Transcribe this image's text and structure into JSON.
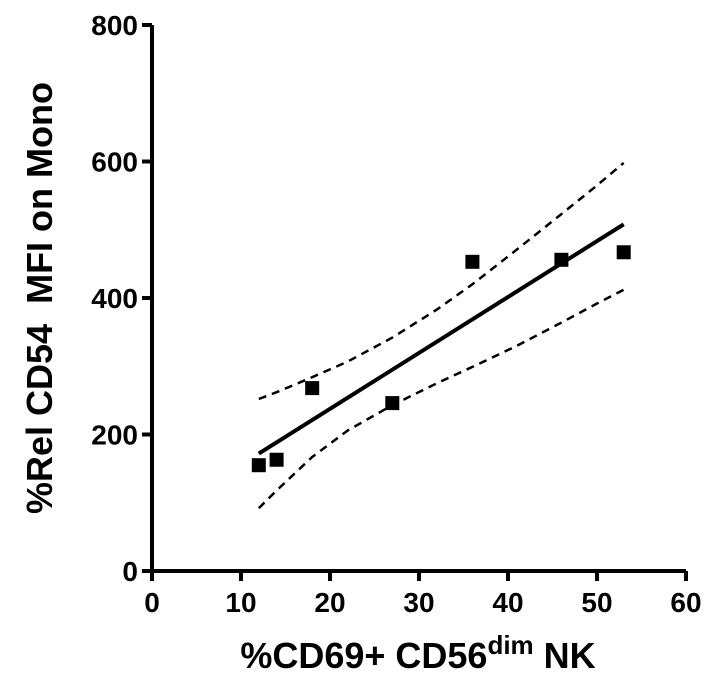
{
  "chart_data": {
    "type": "scatter",
    "title": "",
    "xlabel": {
      "main": "%CD69+ CD56",
      "sup": "dim",
      "tail": " NK"
    },
    "ylabel": "%Rel CD54  MFI on Mono",
    "xlim": [
      0,
      60
    ],
    "ylim": [
      0,
      800
    ],
    "xticks": [
      0,
      10,
      20,
      30,
      40,
      50,
      60
    ],
    "yticks": [
      0,
      200,
      400,
      600,
      800
    ],
    "grid": false,
    "legend": false,
    "series": [
      {
        "x": [
          12,
          14,
          18,
          27,
          36,
          46,
          53
        ],
        "y": [
          155,
          163,
          268,
          246,
          453,
          456,
          467
        ]
      }
    ],
    "fit_line": {
      "x": [
        12,
        53
      ],
      "y": [
        172,
        508
      ]
    },
    "ci_upper": {
      "x": [
        12,
        14,
        18,
        22,
        27,
        32,
        36,
        41,
        46,
        50,
        53
      ],
      "y": [
        252,
        262,
        284,
        307,
        342,
        383,
        420,
        471,
        523,
        565,
        598
      ]
    },
    "ci_lower": {
      "x": [
        12,
        14,
        18,
        22,
        27,
        32,
        36,
        41,
        46,
        50,
        53
      ],
      "y": [
        92,
        118,
        167,
        206,
        243,
        275,
        299,
        330,
        364,
        392,
        412
      ]
    },
    "colors": {
      "marker": "#000000",
      "line": "#000000",
      "axis": "#000000"
    }
  }
}
